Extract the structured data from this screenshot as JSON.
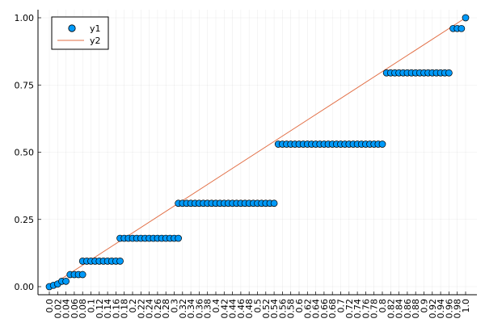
{
  "chart_data": {
    "type": "scatter",
    "xlim": [
      0.0,
      1.0
    ],
    "ylim": [
      0.0,
      1.0
    ],
    "grid": true,
    "legend_position": "top-left",
    "x_ticks": [
      "0.0",
      "0.02",
      "0.04",
      "0.06",
      "0.08",
      "0.1",
      "0.12",
      "0.14",
      "0.16",
      "0.18",
      "0.2",
      "0.22",
      "0.24",
      "0.26",
      "0.28",
      "0.3",
      "0.32",
      "0.34",
      "0.36",
      "0.38",
      "0.4",
      "0.42",
      "0.44",
      "0.46",
      "0.48",
      "0.5",
      "0.52",
      "0.54",
      "0.56",
      "0.58",
      "0.6",
      "0.62",
      "0.64",
      "0.66",
      "0.68",
      "0.7",
      "0.72",
      "0.74",
      "0.76",
      "0.78",
      "0.8",
      "0.82",
      "0.84",
      "0.86",
      "0.88",
      "0.9",
      "0.92",
      "0.94",
      "0.96",
      "0.98",
      "1.0"
    ],
    "y_ticks": [
      "0.00",
      "0.25",
      "0.50",
      "0.75",
      "1.00"
    ],
    "y_tick_values": [
      0.0,
      0.25,
      0.5,
      0.75,
      1.0
    ],
    "series": [
      {
        "name": "y1",
        "kind": "scatter",
        "color": "#009af9",
        "steps": [
          {
            "x_start": 0.0,
            "x_end": 0.0,
            "y": 0.0
          },
          {
            "x_start": 0.01,
            "x_end": 0.01,
            "y": 0.005
          },
          {
            "x_start": 0.02,
            "x_end": 0.02,
            "y": 0.01
          },
          {
            "x_start": 0.03,
            "x_end": 0.04,
            "y": 0.02
          },
          {
            "x_start": 0.05,
            "x_end": 0.08,
            "y": 0.045
          },
          {
            "x_start": 0.08,
            "x_end": 0.17,
            "y": 0.095
          },
          {
            "x_start": 0.17,
            "x_end": 0.31,
            "y": 0.18
          },
          {
            "x_start": 0.31,
            "x_end": 0.54,
            "y": 0.31
          },
          {
            "x_start": 0.55,
            "x_end": 0.8,
            "y": 0.53
          },
          {
            "x_start": 0.81,
            "x_end": 0.96,
            "y": 0.795
          },
          {
            "x_start": 0.97,
            "x_end": 0.99,
            "y": 0.96
          },
          {
            "x_start": 1.0,
            "x_end": 1.0,
            "y": 1.0
          }
        ]
      },
      {
        "name": "y2",
        "kind": "line",
        "color": "#e26f46",
        "x": [
          0.0,
          1.0
        ],
        "y": [
          0.0,
          1.0
        ]
      }
    ]
  }
}
